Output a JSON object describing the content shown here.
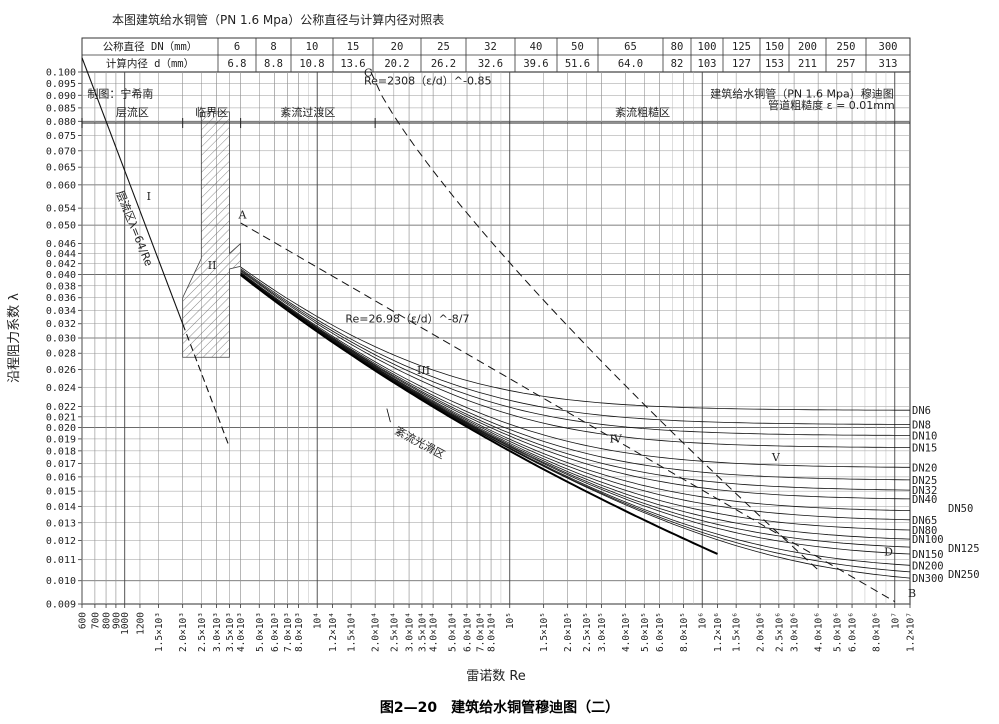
{
  "table": {
    "title": "本图建筑给水铜管（PN 1.6 Mpa）公称直径与计算内径对照表",
    "row1_label": "公称直径 DN（mm）",
    "row2_label": "计算内径 d（mm）",
    "dn": [
      "6",
      "8",
      "10",
      "15",
      "20",
      "25",
      "32",
      "40",
      "50",
      "65",
      "80",
      "100",
      "125",
      "150",
      "200",
      "250",
      "300"
    ],
    "d": [
      "6.8",
      "8.8",
      "10.8",
      "13.6",
      "20.2",
      "26.2",
      "32.6",
      "39.6",
      "51.6",
      "64.0",
      "82",
      "103",
      "127",
      "153",
      "211",
      "257",
      "313"
    ]
  },
  "caption": "图2—20　建筑给水铜管穆迪图（二）",
  "chart_data": {
    "type": "line",
    "title": "建筑给水铜管（PN 1.6 Mpa）穆迪图",
    "subtitle": "管道粗糙度 ε = 0.01mm",
    "author_note": "制图：宁希南",
    "xlabel": "雷诺数 Re",
    "ylabel": "沿程阻力系数 λ",
    "x_scale": "log",
    "y_scale": "log",
    "xlim": [
      600,
      12000000
    ],
    "ylim": [
      0.009,
      0.1
    ],
    "y_ticks": [
      0.009,
      0.01,
      0.011,
      0.012,
      0.013,
      0.014,
      0.015,
      0.016,
      0.017,
      0.018,
      0.019,
      0.02,
      0.021,
      0.022,
      0.024,
      0.026,
      0.028,
      0.03,
      0.032,
      0.034,
      0.036,
      0.038,
      0.04,
      0.042,
      0.044,
      0.046,
      0.05,
      0.054,
      0.06,
      0.065,
      0.07,
      0.075,
      0.08,
      0.085,
      0.09,
      0.095,
      0.1
    ],
    "y_tick_labels": [
      "0.009",
      "0.010",
      "0.011",
      "0.012",
      "0.013",
      "0.014",
      "0.015",
      "0.016",
      "0.017",
      "0.018",
      "0.019",
      "0.020",
      "0.021",
      "0.022",
      "0.024",
      "0.026",
      "0.028",
      "0.030",
      "0.032",
      "0.034",
      "0.036",
      "0.038",
      "0.040",
      "0.042",
      "0.044",
      "0.046",
      "0.050",
      "0.054",
      "0.060",
      "0.065",
      "0.070",
      "0.075",
      "0.080",
      "0.085",
      "0.090",
      "0.095",
      "0.100"
    ],
    "x_ticks": [
      600,
      700,
      800,
      900,
      1000,
      1200,
      1500,
      2000,
      2500,
      3000,
      3500,
      4000,
      5000,
      6000,
      7000,
      8000,
      10000,
      12000,
      15000,
      20000,
      25000,
      30000,
      35000,
      40000,
      50000,
      60000,
      70000,
      80000,
      100000,
      150000,
      200000,
      250000,
      300000,
      400000,
      500000,
      600000,
      800000,
      1000000,
      1200000,
      1500000,
      2000000,
      2500000,
      3000000,
      4000000,
      5000000,
      6000000,
      8000000,
      10000000,
      12000000
    ],
    "x_tick_labels": [
      "600",
      "700",
      "800",
      "900",
      "1000",
      "1200",
      "1.5×10³",
      "2.0×10³",
      "2.5×10³",
      "3.0×10³",
      "3.5×10³",
      "4.0×10³",
      "5.0×10³",
      "6.0×10³",
      "7.0×10³",
      "8.0×10³",
      "10⁴",
      "1.2×10⁴",
      "1.5×10⁴",
      "2.0×10⁴",
      "2.5×10⁴",
      "3.0×10⁴",
      "3.5×10⁴",
      "4.0×10⁴",
      "5.0×10⁴",
      "6.0×10⁴",
      "7.0×10⁴",
      "8.0×10⁴",
      "10⁵",
      "1.5×10⁵",
      "2.0×10⁵",
      "2.5×10⁵",
      "3.0×10⁵",
      "4.0×10⁵",
      "5.0×10⁵",
      "6.0×10⁵",
      "8.0×10⁵",
      "10⁶",
      "1.2×10⁶",
      "1.5×10⁶",
      "2.0×10⁶",
      "2.5×10⁶",
      "3.0×10⁶",
      "4.0×10⁶",
      "5.0×10⁶",
      "6.0×10⁶",
      "8.0×10⁶",
      "10⁷",
      "1.2×10⁷"
    ],
    "zones": [
      {
        "label": "层流区",
        "x_from": 600,
        "x_to": 2000
      },
      {
        "label": "临界区",
        "x_from": 2000,
        "x_to": 4000
      },
      {
        "label": "紊流过渡区",
        "x_from": 4000,
        "x_to": 20000
      },
      {
        "label": "紊流粗糙区",
        "x_from": 20000,
        "x_to": 12000000
      }
    ],
    "hatched_region_label": "II",
    "laminar_line": {
      "label": "层流区λ=64/Re",
      "x": [
        600,
        3500
      ],
      "y": [
        0.1067,
        0.0183
      ]
    },
    "boundary_A": {
      "label": "Re=26.98（ε/d）^-8/7",
      "x": [
        4000,
        10000000
      ],
      "y": [
        0.0505,
        0.0091
      ]
    },
    "boundary_C": {
      "label": "Re=2308（ε/d）^-0.85",
      "x": [
        19000,
        4000000
      ],
      "y": [
        0.1,
        0.0105
      ]
    },
    "smooth_zone_label": "紊流光滑区",
    "region_labels": [
      "I",
      "II",
      "III",
      "IV",
      "V"
    ],
    "point_labels": [
      "A",
      "B",
      "C",
      "D"
    ],
    "series": [
      {
        "name": "DN6",
        "d": 6.8
      },
      {
        "name": "DN8",
        "d": 8.8
      },
      {
        "name": "DN10",
        "d": 10.8
      },
      {
        "name": "DN15",
        "d": 13.6
      },
      {
        "name": "DN20",
        "d": 20.2
      },
      {
        "name": "DN25",
        "d": 26.2
      },
      {
        "name": "DN32",
        "d": 32.6
      },
      {
        "name": "DN40",
        "d": 39.6
      },
      {
        "name": "DN50",
        "d": 51.6
      },
      {
        "name": "DN65",
        "d": 64.0
      },
      {
        "name": "DN80",
        "d": 82
      },
      {
        "name": "DN100",
        "d": 103
      },
      {
        "name": "DN125",
        "d": 127
      },
      {
        "name": "DN150",
        "d": 153
      },
      {
        "name": "DN200",
        "d": 211
      },
      {
        "name": "DN250",
        "d": 257
      },
      {
        "name": "DN300",
        "d": 313
      }
    ],
    "series_x_range": [
      4000,
      12000000
    ],
    "roughness_mm": 0.01,
    "grid": true
  }
}
